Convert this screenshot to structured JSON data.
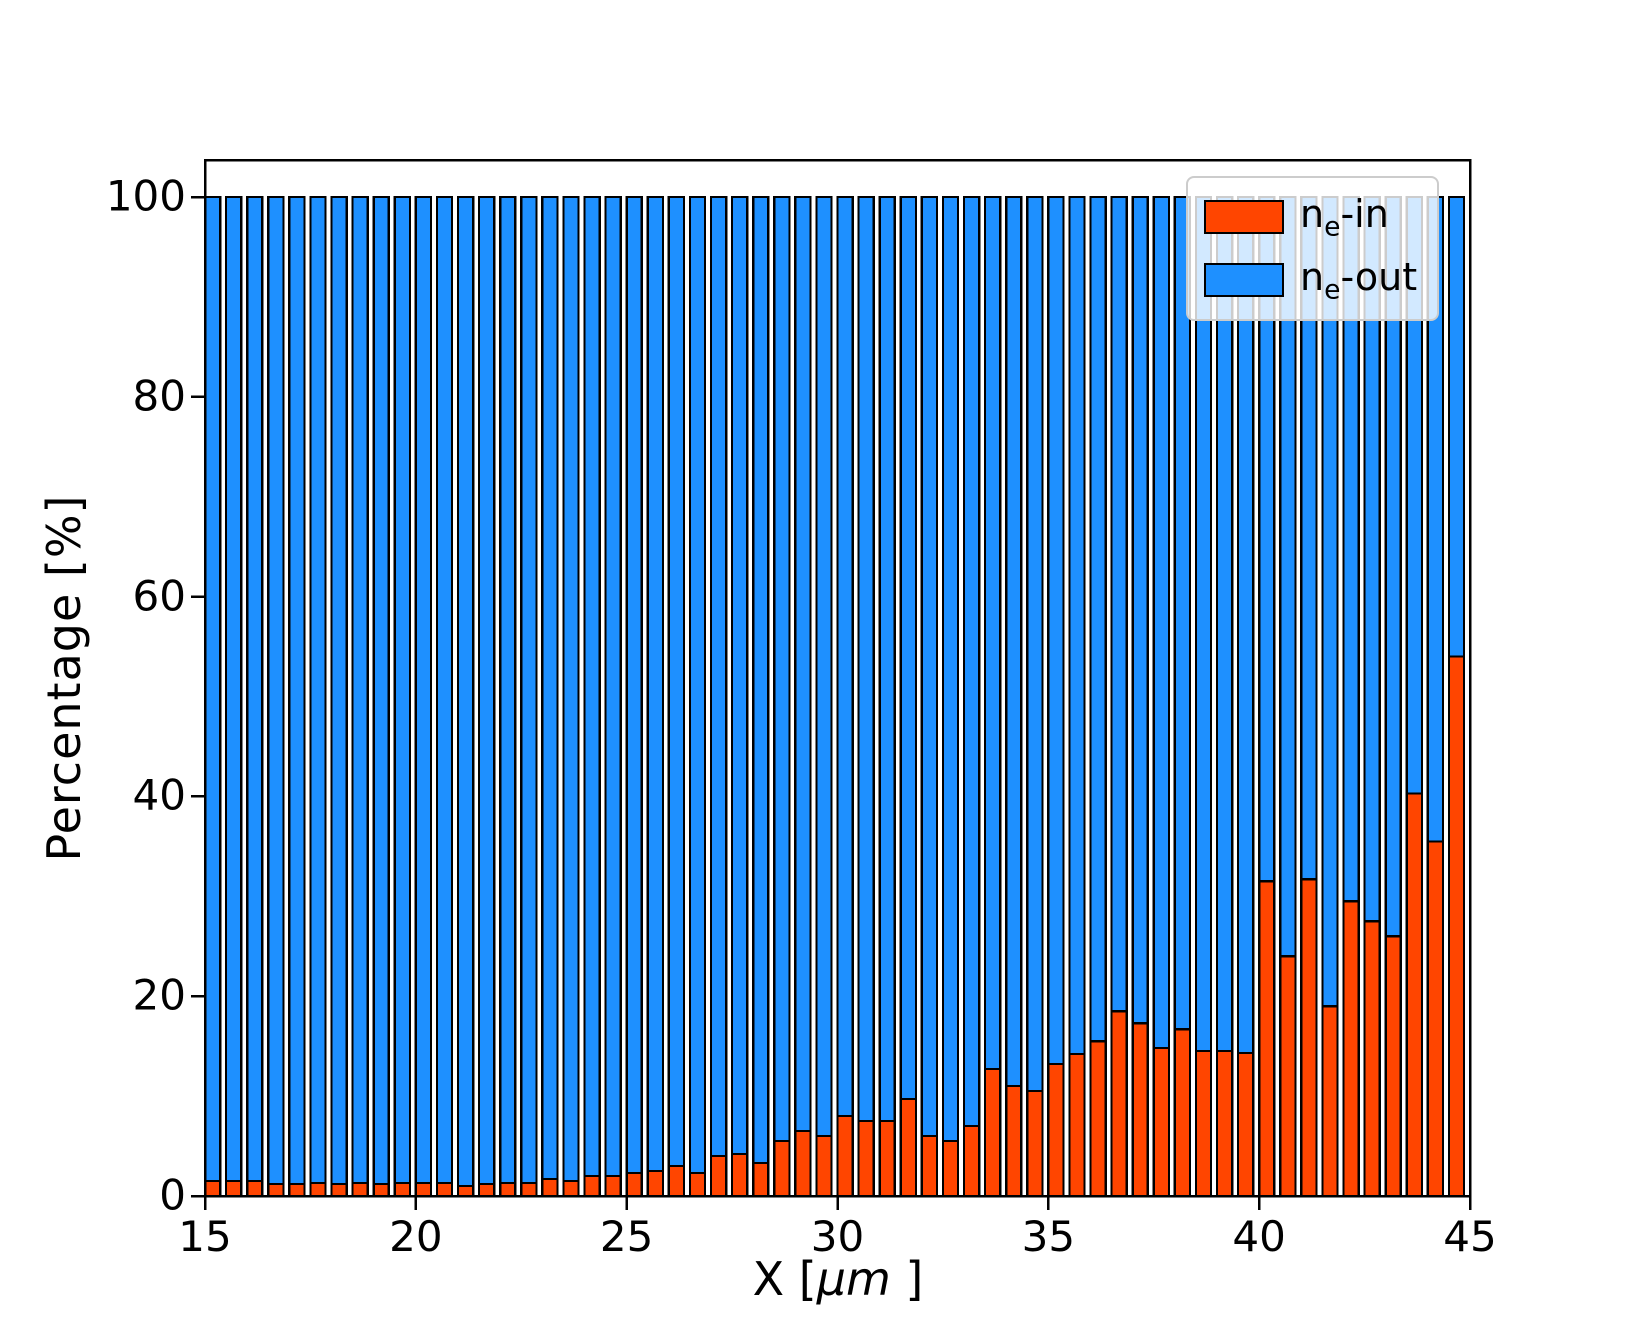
{
  "chart_data": {
    "type": "bar",
    "stacked": true,
    "title": "",
    "xlabel": {
      "prefix": "X  [",
      "math": "μm",
      "suffix": " ]"
    },
    "ylabel": "Percentage  [%]",
    "xlim": [
      15,
      45
    ],
    "ylim": [
      0,
      103.7
    ],
    "x_ticks": [
      15,
      20,
      25,
      30,
      35,
      40,
      45
    ],
    "y_ticks": [
      0,
      20,
      40,
      60,
      80,
      100
    ],
    "grid": false,
    "legend_position": "upper right",
    "bar_width": 0.36,
    "edge_color": "#000000",
    "x": [
      15.0,
      15.5,
      16.0,
      16.5,
      17.0,
      17.5,
      18.0,
      18.5,
      19.0,
      19.5,
      20.0,
      20.5,
      21.0,
      21.5,
      22.0,
      22.5,
      23.0,
      23.5,
      24.0,
      24.5,
      25.0,
      25.5,
      26.0,
      26.5,
      27.0,
      27.5,
      28.0,
      28.5,
      29.0,
      29.5,
      30.0,
      30.5,
      31.0,
      31.5,
      32.0,
      32.5,
      33.0,
      33.5,
      34.0,
      34.5,
      35.0,
      35.5,
      36.0,
      36.5,
      37.0,
      37.5,
      38.0,
      38.5,
      39.0,
      39.5,
      40.0,
      40.5,
      41.0,
      41.5,
      42.0,
      42.5,
      43.0,
      43.5,
      44.0,
      44.5
    ],
    "series": [
      {
        "name": "ne-in",
        "label": {
          "base": "n",
          "sub": "e",
          "suffix": "-in"
        },
        "color": "#FF4500",
        "values": [
          1.5,
          1.5,
          1.5,
          1.2,
          1.2,
          1.3,
          1.2,
          1.3,
          1.2,
          1.3,
          1.3,
          1.3,
          1.0,
          1.2,
          1.3,
          1.3,
          1.7,
          1.5,
          2.0,
          2.0,
          2.3,
          2.5,
          3.0,
          2.3,
          4.0,
          4.2,
          3.3,
          5.5,
          6.5,
          6.0,
          8.0,
          7.5,
          7.5,
          9.7,
          6.0,
          5.5,
          7.0,
          12.7,
          11.0,
          10.5,
          13.2,
          14.2,
          15.5,
          18.5,
          17.3,
          14.8,
          16.7,
          14.5,
          14.5,
          14.3,
          31.5,
          24.0,
          31.7,
          19.0,
          29.5,
          27.5,
          26.0,
          40.3,
          35.5,
          54.0
        ]
      },
      {
        "name": "ne-out",
        "label": {
          "base": "n",
          "sub": "e",
          "suffix": "-out"
        },
        "color": "#1E90FF",
        "values": [
          98.5,
          98.5,
          98.5,
          98.8,
          98.8,
          98.7,
          98.8,
          98.7,
          98.8,
          98.7,
          98.7,
          98.7,
          99.0,
          98.8,
          98.7,
          98.7,
          98.3,
          98.5,
          98.0,
          98.0,
          97.7,
          97.5,
          97.0,
          97.7,
          96.0,
          95.8,
          96.7,
          94.5,
          93.5,
          94.0,
          92.0,
          92.5,
          92.5,
          90.3,
          94.0,
          94.5,
          93.0,
          87.3,
          89.0,
          89.5,
          86.8,
          85.8,
          84.5,
          81.5,
          82.7,
          85.2,
          83.3,
          85.5,
          85.5,
          85.7,
          68.5,
          76.0,
          68.3,
          81.0,
          70.5,
          72.5,
          74.0,
          59.7,
          64.5,
          46.0
        ]
      }
    ]
  }
}
